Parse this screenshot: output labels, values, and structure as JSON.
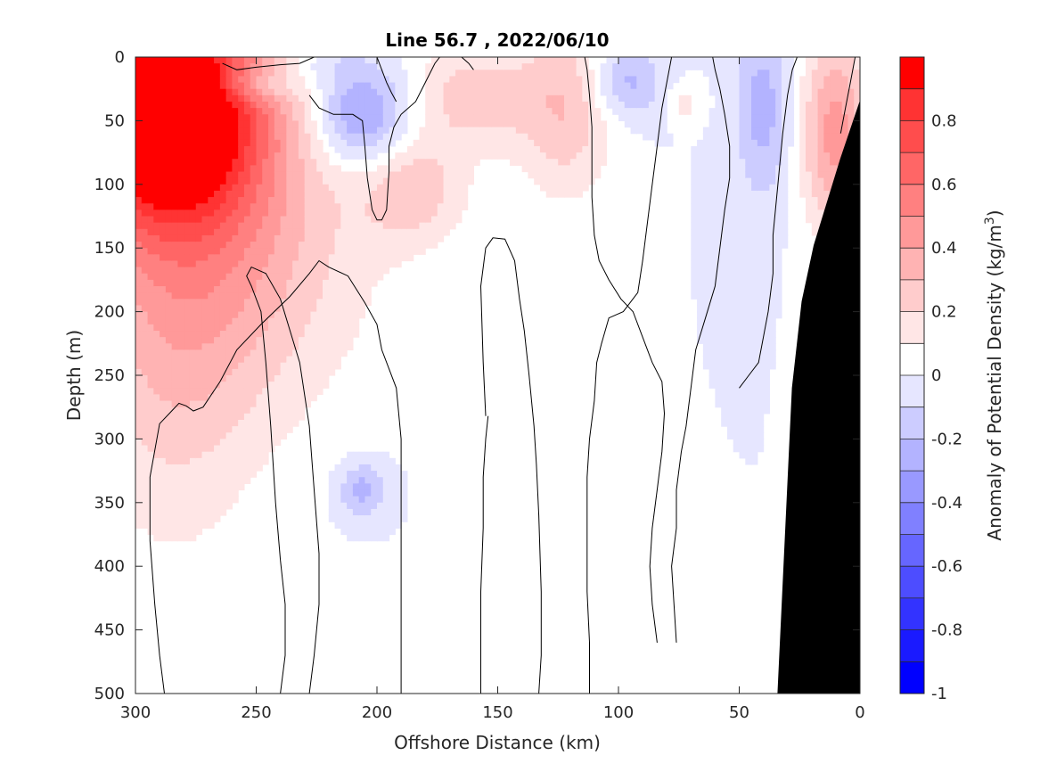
{
  "chart_data": {
    "type": "heatmap",
    "title": "Line 56.7 , 2022/06/10",
    "xlabel": "Offshore Distance (km)",
    "ylabel": "Depth (m)",
    "xlim": [
      300,
      0
    ],
    "ylim": [
      0,
      500
    ],
    "x_reversed": true,
    "y_reversed": true,
    "x_ticks": [
      300,
      250,
      200,
      150,
      100,
      50,
      0
    ],
    "y_ticks": [
      0,
      50,
      100,
      150,
      200,
      250,
      300,
      350,
      400,
      450,
      500
    ],
    "grid": false,
    "colorbar": {
      "label": "Anomaly of Potential Density (kg/m",
      "label_superscript": "3",
      "label_close": ")",
      "limits": [
        -1,
        1
      ],
      "ticks": [
        "-1",
        "-0.8",
        "-0.6",
        "-0.4",
        "-0.2",
        "0",
        "0.2",
        "0.4",
        "0.6",
        "0.8"
      ],
      "tick_values": [
        -1,
        -0.8,
        -0.6,
        -0.4,
        -0.2,
        0,
        0.2,
        0.4,
        0.6,
        0.8
      ],
      "levels": [
        -1,
        -0.9,
        -0.8,
        -0.7,
        -0.6,
        -0.5,
        -0.4,
        -0.3,
        -0.2,
        -0.1,
        0,
        0.1,
        0.2,
        0.3,
        0.4,
        0.5,
        0.6,
        0.7,
        0.8,
        0.9,
        1.0
      ],
      "colors": [
        "#0000ff",
        "#1a1aff",
        "#3333ff",
        "#4d4dff",
        "#6666ff",
        "#8080ff",
        "#9999ff",
        "#b3b3ff",
        "#ccccff",
        "#e6e6ff",
        "#ffffff",
        "#ffe6e6",
        "#ffcccc",
        "#ffb3b3",
        "#ff9999",
        "#ff8080",
        "#ff6666",
        "#ff4d4d",
        "#ff3333",
        "#ff0000"
      ]
    },
    "features": [
      {
        "name": "warm-anomaly-offshore",
        "x": 290,
        "y": 40,
        "sx": 30,
        "sy": 60,
        "a": 1.3
      },
      {
        "name": "warm-anomaly-deep-offshore",
        "x": 285,
        "y": 250,
        "sx": 25,
        "sy": 110,
        "a": 0.18
      },
      {
        "name": "warm-anomaly-mid-offshore",
        "x": 265,
        "y": 150,
        "sx": 40,
        "sy": 90,
        "a": 0.35
      },
      {
        "name": "cool-anomaly-surface-1",
        "x": 250,
        "y": 22,
        "sx": 12,
        "sy": 10,
        "a": -0.22
      },
      {
        "name": "cool-anomaly-surface-2",
        "x": 207,
        "y": 45,
        "sx": 14,
        "sy": 28,
        "a": -0.4
      },
      {
        "name": "cool-anomaly-surface-3",
        "x": 225,
        "y": 5,
        "sx": 12,
        "sy": 10,
        "a": -0.12
      },
      {
        "name": "warm-anomaly-1",
        "x": 185,
        "y": 105,
        "sx": 15,
        "sy": 30,
        "a": 0.25
      },
      {
        "name": "warm-anomaly-2",
        "x": 160,
        "y": 30,
        "sx": 18,
        "sy": 30,
        "a": 0.25
      },
      {
        "name": "warm-anomaly-3",
        "x": 122,
        "y": 40,
        "sx": 14,
        "sy": 50,
        "a": 0.28
      },
      {
        "name": "cool-anomaly-4",
        "x": 97,
        "y": 20,
        "sx": 10,
        "sy": 20,
        "a": -0.25
      },
      {
        "name": "warm-anomaly-5",
        "x": 73,
        "y": 35,
        "sx": 5,
        "sy": 10,
        "a": 0.15
      },
      {
        "name": "cool-anomaly-6",
        "x": 40,
        "y": 40,
        "sx": 8,
        "sy": 50,
        "a": -0.25
      },
      {
        "name": "warm-anomaly-nearshore",
        "x": 10,
        "y": 60,
        "sx": 10,
        "sy": 55,
        "a": 0.45
      },
      {
        "name": "cool-anomaly-deep",
        "x": 206,
        "y": 340,
        "sx": 7,
        "sy": 15,
        "a": -0.25
      }
    ],
    "bathymetry": [
      {
        "x": 0,
        "y": 35
      },
      {
        "x": 8,
        "y": 80
      },
      {
        "x": 19,
        "y": 148
      },
      {
        "x": 24,
        "y": 192
      },
      {
        "x": 28,
        "y": 260
      },
      {
        "x": 30,
        "y": 340
      },
      {
        "x": 34,
        "y": 500
      },
      {
        "x": 0,
        "y": 500
      }
    ],
    "zero_contours": [
      [
        [
          240,
          500
        ],
        [
          238,
          470
        ],
        [
          238,
          430
        ],
        [
          240,
          395
        ],
        [
          242,
          350
        ],
        [
          244,
          290
        ],
        [
          246,
          240
        ],
        [
          248,
          200
        ],
        [
          252,
          180
        ],
        [
          254,
          172
        ],
        [
          252,
          165
        ],
        [
          246,
          170
        ],
        [
          240,
          190
        ],
        [
          232,
          240
        ],
        [
          228,
          290
        ],
        [
          226,
          340
        ],
        [
          224,
          390
        ],
        [
          224,
          430
        ],
        [
          226,
          470
        ],
        [
          228,
          500
        ]
      ],
      [
        [
          190,
          500
        ],
        [
          190,
          450
        ],
        [
          190,
          400
        ],
        [
          190,
          350
        ],
        [
          190,
          300
        ],
        [
          192,
          260
        ],
        [
          198,
          230
        ],
        [
          200,
          210
        ],
        [
          205,
          193
        ],
        [
          212,
          172
        ],
        [
          220,
          165
        ],
        [
          224,
          160
        ],
        [
          228,
          170
        ],
        [
          236,
          188
        ],
        [
          248,
          210
        ],
        [
          258,
          230
        ],
        [
          265,
          255
        ],
        [
          272,
          275
        ],
        [
          276,
          278
        ],
        [
          279,
          274
        ],
        [
          282,
          272
        ],
        [
          285,
          278
        ],
        [
          290,
          288
        ],
        [
          294,
          330
        ],
        [
          294,
          380
        ],
        [
          292,
          430
        ],
        [
          290,
          470
        ],
        [
          288,
          500
        ]
      ],
      [
        [
          133,
          500
        ],
        [
          132,
          470
        ],
        [
          132,
          420
        ],
        [
          133,
          360
        ],
        [
          134,
          320
        ],
        [
          135,
          290
        ],
        [
          137,
          250
        ],
        [
          139,
          215
        ],
        [
          141,
          190
        ],
        [
          143,
          160
        ],
        [
          147,
          143
        ],
        [
          152,
          142
        ],
        [
          155,
          150
        ],
        [
          157,
          180
        ],
        [
          156,
          240
        ],
        [
          155,
          282
        ]
      ],
      [
        [
          157,
          500
        ],
        [
          157,
          470
        ],
        [
          157,
          420
        ],
        [
          156,
          370
        ],
        [
          156,
          330
        ],
        [
          155,
          300
        ],
        [
          154,
          282
        ]
      ],
      [
        [
          112,
          500
        ],
        [
          112,
          460
        ],
        [
          113,
          420
        ],
        [
          113,
          380
        ],
        [
          113,
          330
        ],
        [
          112,
          300
        ],
        [
          110,
          270
        ],
        [
          109,
          240
        ],
        [
          107,
          225
        ],
        [
          104,
          205
        ],
        [
          98,
          200
        ],
        [
          92,
          185
        ],
        [
          90,
          160
        ],
        [
          88,
          130
        ],
        [
          86,
          100
        ],
        [
          84,
          70
        ],
        [
          82,
          40
        ],
        [
          80,
          20
        ],
        [
          78,
          0
        ]
      ],
      [
        [
          84,
          460
        ],
        [
          86,
          430
        ],
        [
          87,
          400
        ],
        [
          86,
          370
        ],
        [
          84,
          340
        ],
        [
          82,
          310
        ],
        [
          81,
          280
        ],
        [
          82,
          255
        ],
        [
          86,
          240
        ],
        [
          90,
          220
        ],
        [
          94,
          200
        ],
        [
          99,
          190
        ],
        [
          104,
          175
        ],
        [
          108,
          160
        ],
        [
          110,
          140
        ],
        [
          111,
          110
        ],
        [
          111,
          80
        ],
        [
          111,
          55
        ],
        [
          112,
          30
        ],
        [
          113,
          10
        ],
        [
          114,
          0
        ]
      ],
      [
        [
          76,
          460
        ],
        [
          77,
          430
        ],
        [
          78,
          400
        ],
        [
          76,
          370
        ],
        [
          76,
          340
        ],
        [
          74,
          310
        ],
        [
          72,
          290
        ],
        [
          70,
          260
        ],
        [
          68,
          230
        ],
        [
          64,
          205
        ],
        [
          60,
          180
        ],
        [
          58,
          150
        ],
        [
          56,
          120
        ],
        [
          54,
          95
        ],
        [
          54,
          70
        ],
        [
          56,
          45
        ],
        [
          58,
          25
        ],
        [
          60,
          10
        ],
        [
          61,
          0
        ]
      ],
      [
        [
          50,
          260
        ],
        [
          46,
          250
        ],
        [
          42,
          240
        ],
        [
          40,
          220
        ],
        [
          38,
          200
        ],
        [
          36,
          170
        ],
        [
          36,
          140
        ],
        [
          34,
          100
        ],
        [
          32,
          60
        ],
        [
          30,
          30
        ],
        [
          28,
          10
        ],
        [
          26,
          0
        ]
      ],
      [
        [
          228,
          30
        ],
        [
          224,
          40
        ],
        [
          218,
          45
        ],
        [
          210,
          45
        ],
        [
          206,
          50
        ],
        [
          205,
          70
        ],
        [
          204,
          95
        ],
        [
          202,
          120
        ],
        [
          200,
          128
        ],
        [
          198,
          128
        ],
        [
          196,
          120
        ],
        [
          195,
          90
        ],
        [
          195,
          70
        ],
        [
          193,
          55
        ],
        [
          190,
          45
        ],
        [
          184,
          35
        ],
        [
          180,
          20
        ],
        [
          176,
          5
        ],
        [
          174,
          0
        ]
      ],
      [
        [
          264,
          5
        ],
        [
          258,
          10
        ],
        [
          250,
          8
        ],
        [
          240,
          6
        ],
        [
          232,
          5
        ],
        [
          226,
          0
        ]
      ],
      [
        [
          200,
          0
        ],
        [
          198,
          10
        ],
        [
          196,
          20
        ],
        [
          194,
          28
        ],
        [
          192,
          35
        ]
      ],
      [
        [
          165,
          0
        ],
        [
          162,
          5
        ],
        [
          160,
          10
        ]
      ],
      [
        [
          2,
          0
        ],
        [
          4,
          20
        ],
        [
          6,
          40
        ],
        [
          8,
          60
        ]
      ]
    ]
  }
}
